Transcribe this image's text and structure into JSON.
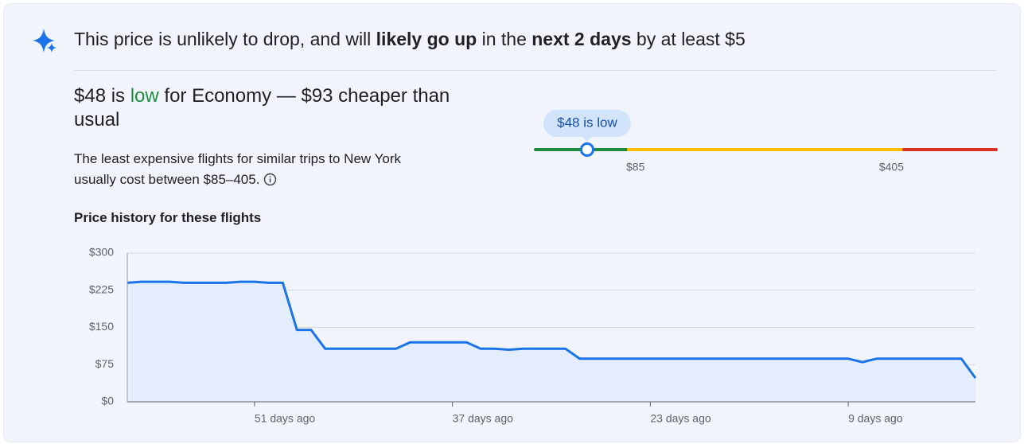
{
  "headline": {
    "parts": [
      {
        "text": "This price is unlikely to drop, and will ",
        "bold": false
      },
      {
        "text": "likely go up",
        "bold": true
      },
      {
        "text": " in the ",
        "bold": false
      },
      {
        "text": "next 2 days",
        "bold": true
      },
      {
        "text": " by at least $5",
        "bold": false
      }
    ]
  },
  "summary": {
    "parts": [
      {
        "text": "$48 is ",
        "highlight": false
      },
      {
        "text": "low",
        "highlight": true
      },
      {
        "text": " for Economy — $93 cheaper than usual",
        "highlight": false
      }
    ]
  },
  "description": "The least expensive flights for similar trips to New York usually cost between $85–405.",
  "gauge": {
    "bubble": "$48 is low",
    "value": 48,
    "thresholds": [
      {
        "value": 85,
        "label": "$85"
      },
      {
        "value": 405,
        "label": "$405"
      }
    ],
    "colors": [
      "#1e8e3e",
      "#fbbc04",
      "#d93025"
    ]
  },
  "chart_data": {
    "type": "line",
    "title": "Price history for these flights",
    "x": [
      60,
      59,
      58,
      57,
      56,
      55,
      54,
      53,
      52,
      51,
      50,
      49,
      48,
      47,
      46,
      45,
      44,
      43,
      42,
      41,
      40,
      39,
      38,
      37,
      36,
      35,
      34,
      33,
      32,
      31,
      30,
      29,
      28,
      27,
      26,
      25,
      24,
      23,
      22,
      21,
      20,
      19,
      18,
      17,
      16,
      15,
      14,
      13,
      12,
      11,
      10,
      9,
      8,
      7,
      6,
      5,
      4,
      3,
      2,
      1,
      0
    ],
    "values": [
      240,
      242,
      242,
      242,
      240,
      240,
      240,
      240,
      242,
      242,
      240,
      240,
      145,
      145,
      107,
      107,
      107,
      107,
      107,
      107,
      120,
      120,
      120,
      120,
      120,
      107,
      107,
      105,
      107,
      107,
      107,
      107,
      87,
      87,
      87,
      87,
      87,
      87,
      87,
      87,
      87,
      87,
      87,
      87,
      87,
      87,
      87,
      87,
      87,
      87,
      87,
      87,
      80,
      87,
      87,
      87,
      87,
      87,
      87,
      87,
      48
    ],
    "color": "#1a73e8",
    "area_color": "#e3edfb",
    "xlim": [
      60,
      0
    ],
    "xticks": [
      {
        "value": 51,
        "label": "51 days ago"
      },
      {
        "value": 37,
        "label": "37 days ago"
      },
      {
        "value": 23,
        "label": "23 days ago"
      },
      {
        "value": 9,
        "label": "9 days ago"
      }
    ],
    "ylim": [
      0,
      300
    ],
    "yticks": [
      {
        "value": 0,
        "label": "$0"
      },
      {
        "value": 75,
        "label": "$75"
      },
      {
        "value": 150,
        "label": "$150"
      },
      {
        "value": 225,
        "label": "$225"
      },
      {
        "value": 300,
        "label": "$300"
      }
    ],
    "grid": true
  }
}
